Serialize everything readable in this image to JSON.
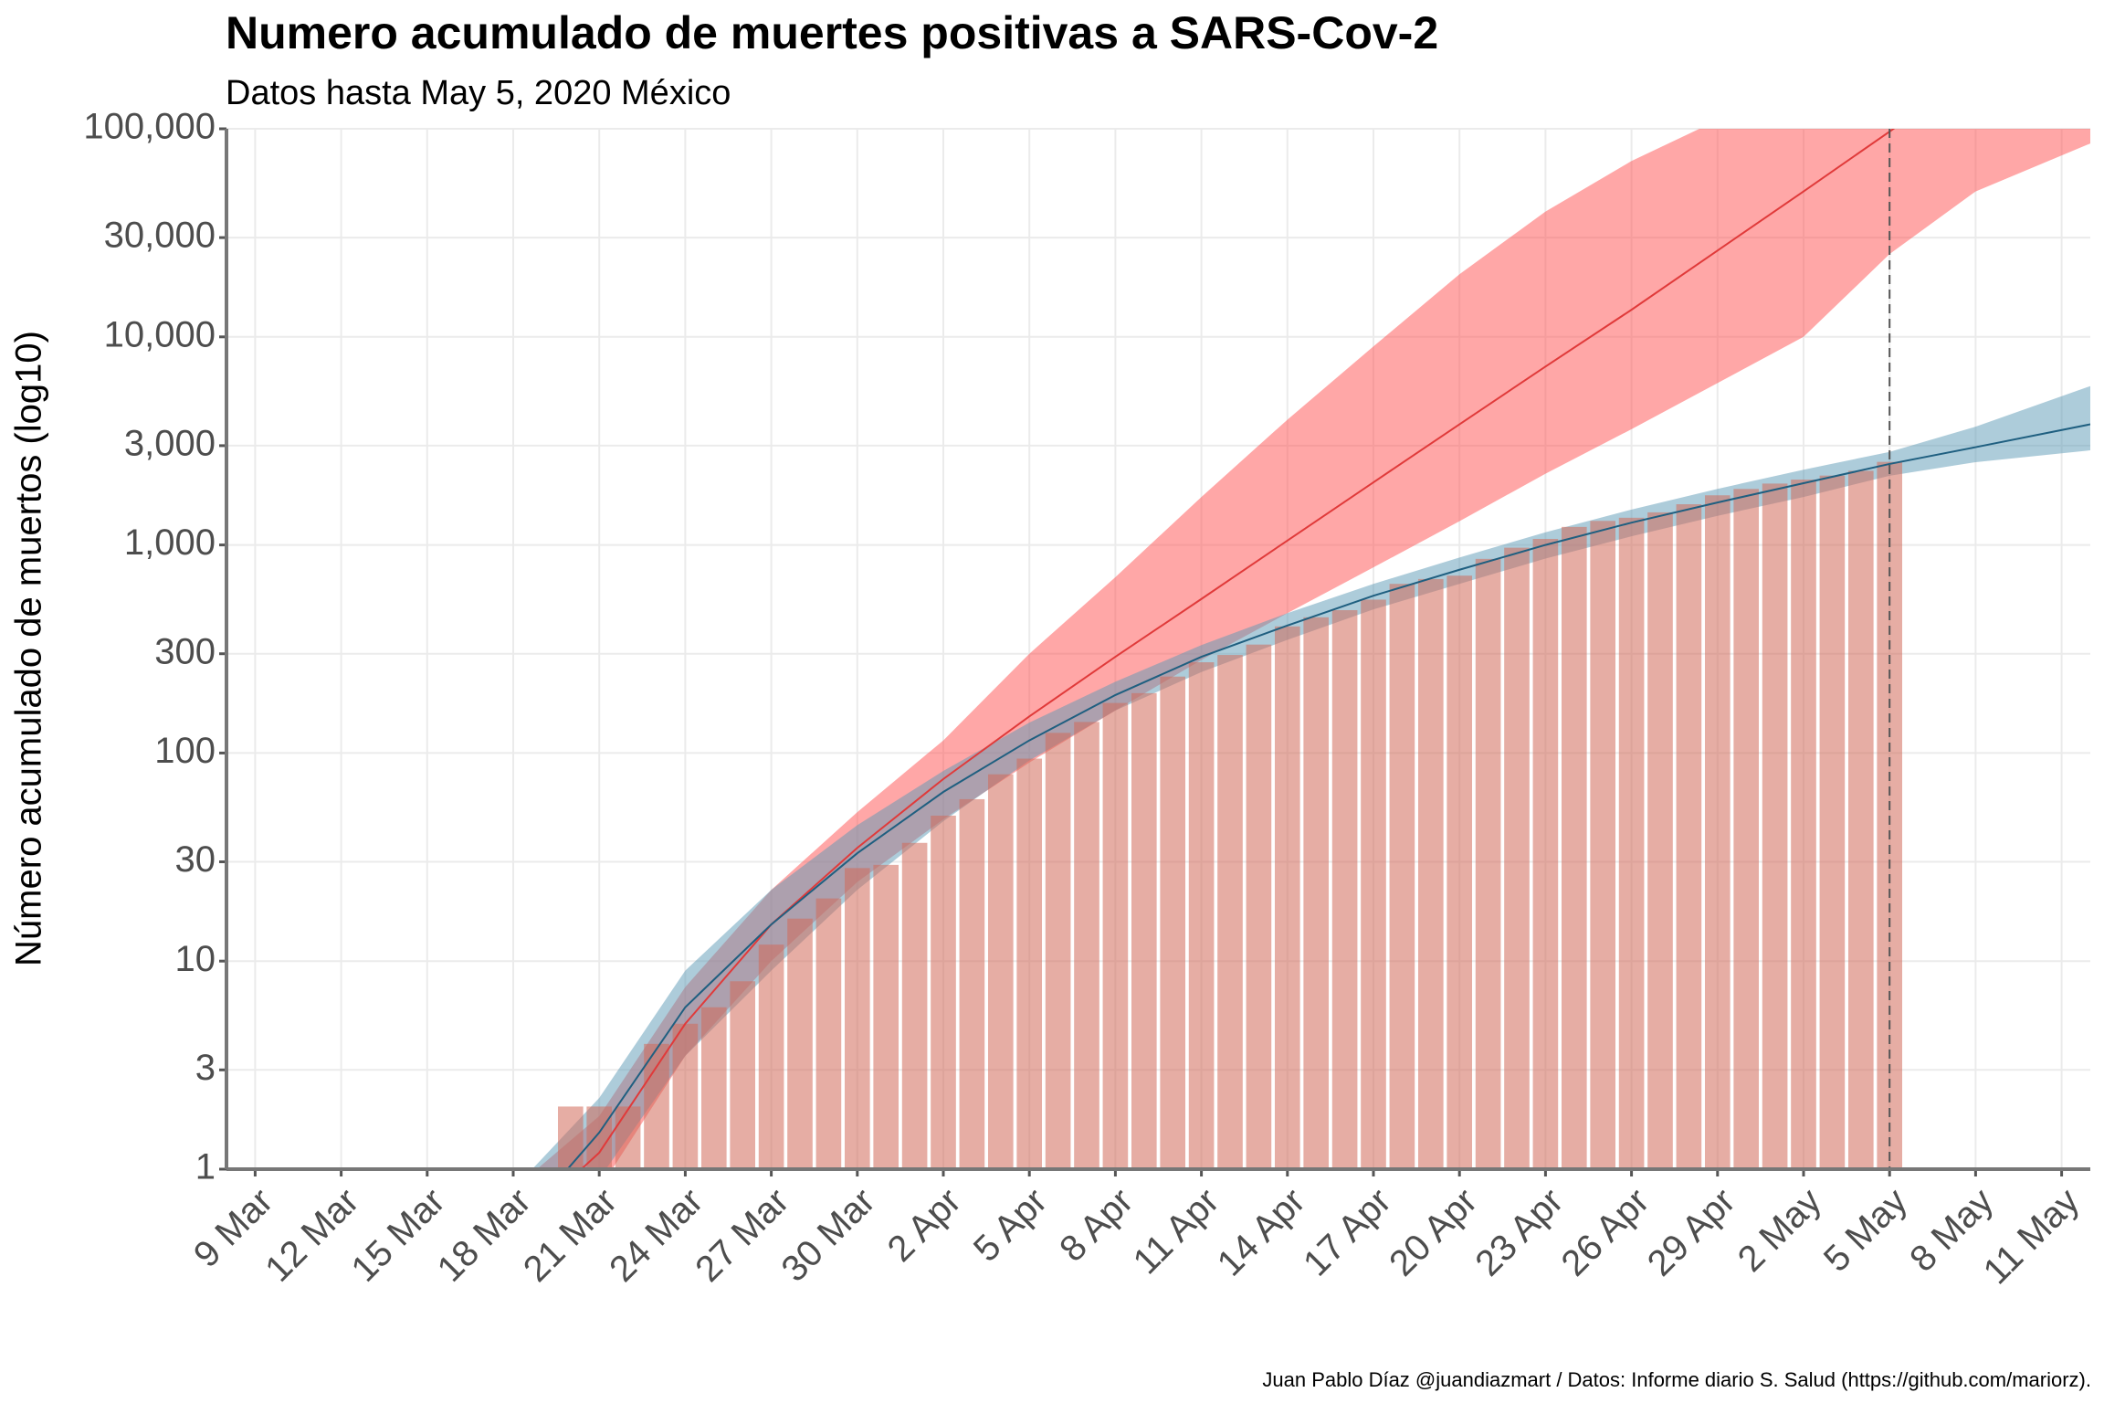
{
  "chart_data": {
    "type": "bar",
    "title": "Numero acumulado de muertes positivas a SARS-Cov-2",
    "subtitle": "Datos hasta May  5, 2020 México",
    "y_label": "Número acumulado de muertos (log10)",
    "caption": "Juan Pablo Díaz @juandiazmart / Datos: Informe diario S. Salud (https://github.com/mariorz).",
    "log_y": true,
    "grid": true,
    "ylim": [
      1,
      100000
    ],
    "yticks": [
      1,
      3,
      10,
      30,
      100,
      300,
      {
        "value": 1000,
        "label": "1,000"
      },
      {
        "value": 3000,
        "label": "3,000"
      },
      {
        "value": 10000,
        "label": "10,000"
      },
      {
        "value": 30000,
        "label": "30,000"
      },
      {
        "value": 100000,
        "label": "100,000"
      }
    ],
    "xlim": [
      "8 Mar",
      "12 May"
    ],
    "xticks": [
      "9 Mar",
      "12 Mar",
      "15 Mar",
      "18 Mar",
      "21 Mar",
      "24 Mar",
      "27 Mar",
      "30 Mar",
      "2 Apr",
      "5 Apr",
      "8 Apr",
      "11 Apr",
      "14 Apr",
      "17 Apr",
      "20 Apr",
      "23 Apr",
      "26 Apr",
      "29 Apr",
      "2 May",
      "5 May",
      "8 May",
      "11 May"
    ],
    "vline": "5 May",
    "bars": {
      "color": "#d2695a",
      "x": [
        "19 Mar",
        "20 Mar",
        "21 Mar",
        "22 Mar",
        "23 Mar",
        "24 Mar",
        "25 Mar",
        "26 Mar",
        "27 Mar",
        "28 Mar",
        "29 Mar",
        "30 Mar",
        "31 Mar",
        "1 Apr",
        "2 Apr",
        "3 Apr",
        "4 Apr",
        "5 Apr",
        "6 Apr",
        "7 Apr",
        "8 Apr",
        "9 Apr",
        "10 Apr",
        "11 Apr",
        "12 Apr",
        "13 Apr",
        "14 Apr",
        "15 Apr",
        "16 Apr",
        "17 Apr",
        "18 Apr",
        "19 Apr",
        "20 Apr",
        "21 Apr",
        "22 Apr",
        "23 Apr",
        "24 Apr",
        "25 Apr",
        "26 Apr",
        "27 Apr",
        "28 Apr",
        "29 Apr",
        "30 Apr",
        "1 May",
        "2 May",
        "3 May",
        "4 May",
        "5 May"
      ],
      "values": [
        1,
        2,
        2,
        2,
        4,
        5,
        6,
        8,
        12,
        16,
        20,
        28,
        29,
        37,
        50,
        60,
        79,
        94,
        125,
        141,
        174,
        194,
        233,
        273,
        296,
        332,
        406,
        449,
        486,
        546,
        650,
        686,
        712,
        857,
        970,
        1069,
        1221,
        1305,
        1351,
        1434,
        1569,
        1732,
        1859,
        1972,
        2061,
        2154,
        2271,
        2507
      ]
    },
    "fits": [
      {
        "color": "#ff5050",
        "line_color": "#e03a3a",
        "x": [
          "18 Mar",
          "21 Mar",
          "24 Mar",
          "27 Mar",
          "30 Mar",
          "2 Apr",
          "5 Apr",
          "8 Apr",
          "11 Apr",
          "14 Apr",
          "17 Apr",
          "20 Apr",
          "23 Apr",
          "26 Apr",
          "29 Apr",
          "2 May",
          "5 May",
          "8 May",
          "12 May"
        ],
        "values": [
          0.5,
          1.2,
          5,
          15,
          35,
          75,
          150,
          290,
          550,
          1050,
          2000,
          3800,
          7200,
          13500,
          26000,
          50000,
          97000,
          190000,
          480000
        ],
        "lower": [
          0.3,
          0.8,
          3.5,
          10,
          24,
          48,
          90,
          160,
          280,
          470,
          780,
          1300,
          2200,
          3600,
          6000,
          10000,
          25000,
          50000,
          85000
        ],
        "upper": [
          0.8,
          1.8,
          7.5,
          22,
          52,
          115,
          300,
          700,
          1700,
          4000,
          9000,
          20000,
          40000,
          70000,
          110000,
          200000,
          400000,
          800000,
          1600000
        ]
      },
      {
        "color": "#5b9ab5",
        "line_color": "#1f5f80",
        "x": [
          "18 Mar",
          "21 Mar",
          "24 Mar",
          "27 Mar",
          "30 Mar",
          "2 Apr",
          "5 Apr",
          "8 Apr",
          "11 Apr",
          "14 Apr",
          "17 Apr",
          "20 Apr",
          "23 Apr",
          "26 Apr",
          "29 Apr",
          "2 May",
          "5 May",
          "8 May",
          "12 May"
        ],
        "values": [
          0.5,
          1.5,
          6,
          15,
          33,
          65,
          115,
          190,
          290,
          410,
          570,
          760,
          1000,
          1280,
          1600,
          1980,
          2450,
          2950,
          3800
        ],
        "lower": [
          0.3,
          0.9,
          3.5,
          9,
          22,
          47,
          92,
          160,
          245,
          350,
          490,
          650,
          860,
          1100,
          1380,
          1700,
          2150,
          2500,
          2850
        ],
        "upper": [
          0.8,
          2.2,
          9,
          22,
          45,
          82,
          140,
          220,
          330,
          470,
          650,
          870,
          1150,
          1480,
          1860,
          2300,
          2800,
          3700,
          5800
        ]
      }
    ]
  }
}
